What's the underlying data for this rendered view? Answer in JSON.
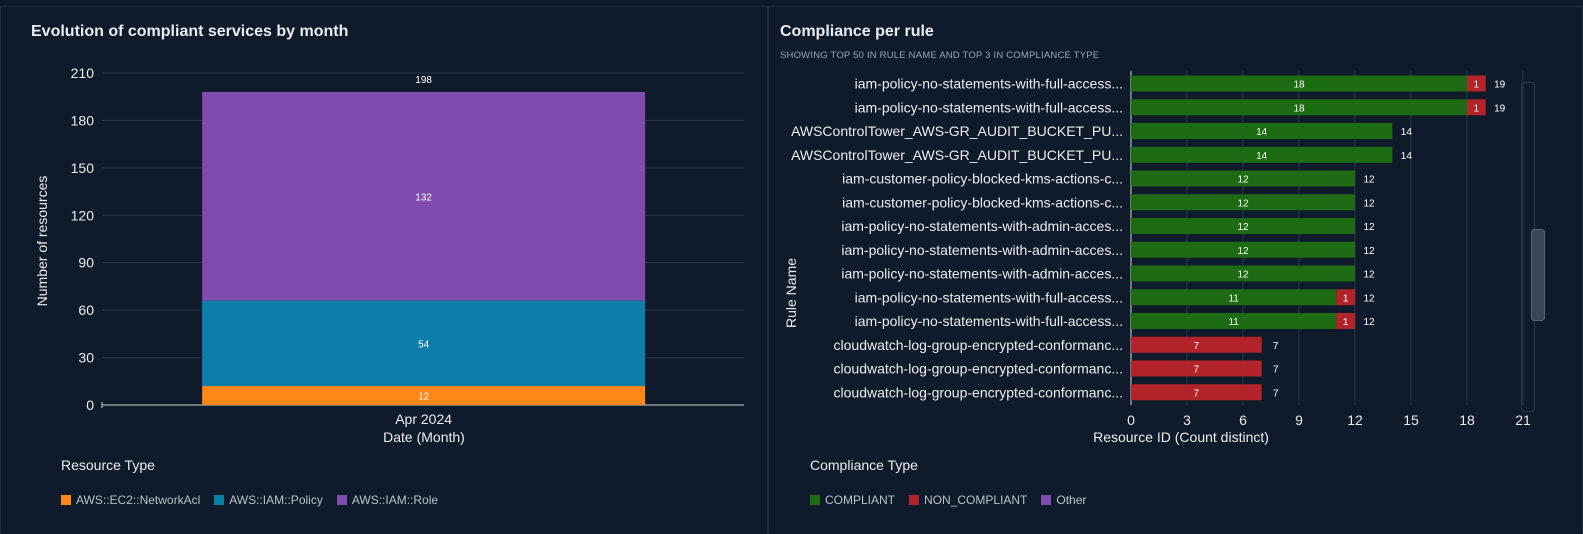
{
  "left_panel": {
    "title": "Evolution of compliant services by month",
    "legend_title": "Resource Type"
  },
  "right_panel": {
    "title": "Compliance per rule",
    "subtitle": "SHOWING TOP 50 IN RULE NAME AND TOP 3 IN COMPLIANCE TYPE",
    "legend_title": "Compliance Type"
  },
  "chart_data": [
    {
      "type": "bar",
      "stacked": true,
      "orientation": "vertical",
      "title": "Evolution of compliant services by month",
      "xlabel": "Date (Month)",
      "ylabel": "Number of resources",
      "ylim": [
        0,
        210
      ],
      "yticks": [
        0,
        30,
        60,
        90,
        120,
        150,
        180,
        210
      ],
      "categories": [
        "Apr 2024"
      ],
      "totals": [
        198
      ],
      "series": [
        {
          "name": "AWS::EC2::NetworkAcl",
          "color": "#ff8717",
          "values": [
            12
          ]
        },
        {
          "name": "AWS::IAM::Policy",
          "color": "#0d7ea8",
          "values": [
            54
          ]
        },
        {
          "name": "AWS::IAM::Role",
          "color": "#7f4baf",
          "values": [
            132
          ]
        }
      ],
      "legend": [
        "AWS::EC2::NetworkAcl",
        "AWS::IAM::Policy",
        "AWS::IAM::Role"
      ],
      "legend_position": "bottom-left",
      "grid": true
    },
    {
      "type": "bar",
      "stacked": true,
      "orientation": "horizontal",
      "title": "Compliance per rule",
      "xlabel": "Resource ID (Count distinct)",
      "ylabel": "Rule Name",
      "xlim": [
        0,
        21
      ],
      "xticks": [
        0,
        3,
        6,
        9,
        12,
        15,
        18,
        21
      ],
      "categories": [
        "iam-policy-no-statements-with-full-access...",
        "iam-policy-no-statements-with-full-access...",
        "AWSControlTower_AWS-GR_AUDIT_BUCKET_PU...",
        "AWSControlTower_AWS-GR_AUDIT_BUCKET_PU...",
        "iam-customer-policy-blocked-kms-actions-c...",
        "iam-customer-policy-blocked-kms-actions-c...",
        "iam-policy-no-statements-with-admin-acces...",
        "iam-policy-no-statements-with-admin-acces...",
        "iam-policy-no-statements-with-admin-acces...",
        "iam-policy-no-statements-with-full-access...",
        "iam-policy-no-statements-with-full-access...",
        "cloudwatch-log-group-encrypted-conformanc...",
        "cloudwatch-log-group-encrypted-conformanc...",
        "cloudwatch-log-group-encrypted-conformanc..."
      ],
      "totals": [
        19,
        19,
        14,
        14,
        12,
        12,
        12,
        12,
        12,
        12,
        12,
        7,
        7,
        7
      ],
      "series": [
        {
          "name": "COMPLIANT",
          "color": "#1d6b12",
          "values": [
            18,
            18,
            14,
            14,
            12,
            12,
            12,
            12,
            12,
            11,
            11,
            0,
            0,
            0
          ]
        },
        {
          "name": "NON_COMPLIANT",
          "color": "#b3232a",
          "values": [
            1,
            1,
            0,
            0,
            0,
            0,
            0,
            0,
            0,
            1,
            1,
            7,
            7,
            7
          ]
        },
        {
          "name": "Other",
          "color": "#7f4baf",
          "values": [
            0,
            0,
            0,
            0,
            0,
            0,
            0,
            0,
            0,
            0,
            0,
            0,
            0,
            0
          ]
        }
      ],
      "legend": [
        "COMPLIANT",
        "NON_COMPLIANT",
        "Other"
      ],
      "legend_position": "bottom-left",
      "grid": true
    }
  ]
}
